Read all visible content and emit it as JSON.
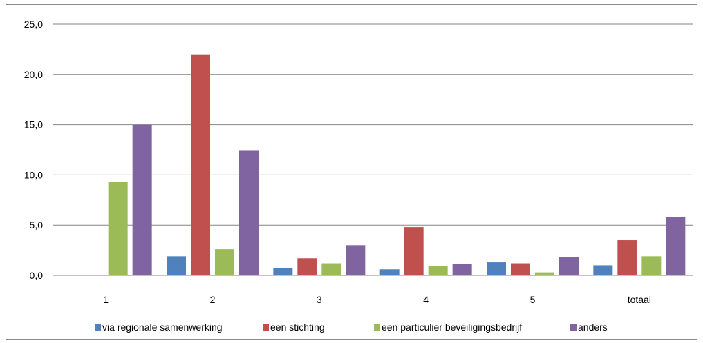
{
  "chart_data": {
    "type": "bar",
    "categories": [
      "1",
      "2",
      "3",
      "4",
      "5",
      "totaal"
    ],
    "series": [
      {
        "name": "via regionale samenwerking",
        "color": "#4f81bd",
        "values": [
          0,
          1.9,
          0.7,
          0.6,
          1.3,
          1.0
        ]
      },
      {
        "name": "een stichting",
        "color": "#c0504d",
        "values": [
          0,
          22.0,
          1.7,
          4.8,
          1.2,
          3.5
        ]
      },
      {
        "name": "een particulier beveiligingsbedrijf",
        "color": "#9bbb59",
        "values": [
          9.3,
          2.6,
          1.2,
          0.9,
          0.3,
          1.9
        ]
      },
      {
        "name": "anders",
        "color": "#8064a2",
        "values": [
          15.0,
          12.4,
          3.0,
          1.1,
          1.8,
          5.8
        ]
      }
    ],
    "yticks": [
      "0,0",
      "5,0",
      "10,0",
      "15,0",
      "20,0",
      "25,0"
    ],
    "ylim": [
      0,
      25
    ],
    "grid": true,
    "legend_position": "bottom"
  }
}
